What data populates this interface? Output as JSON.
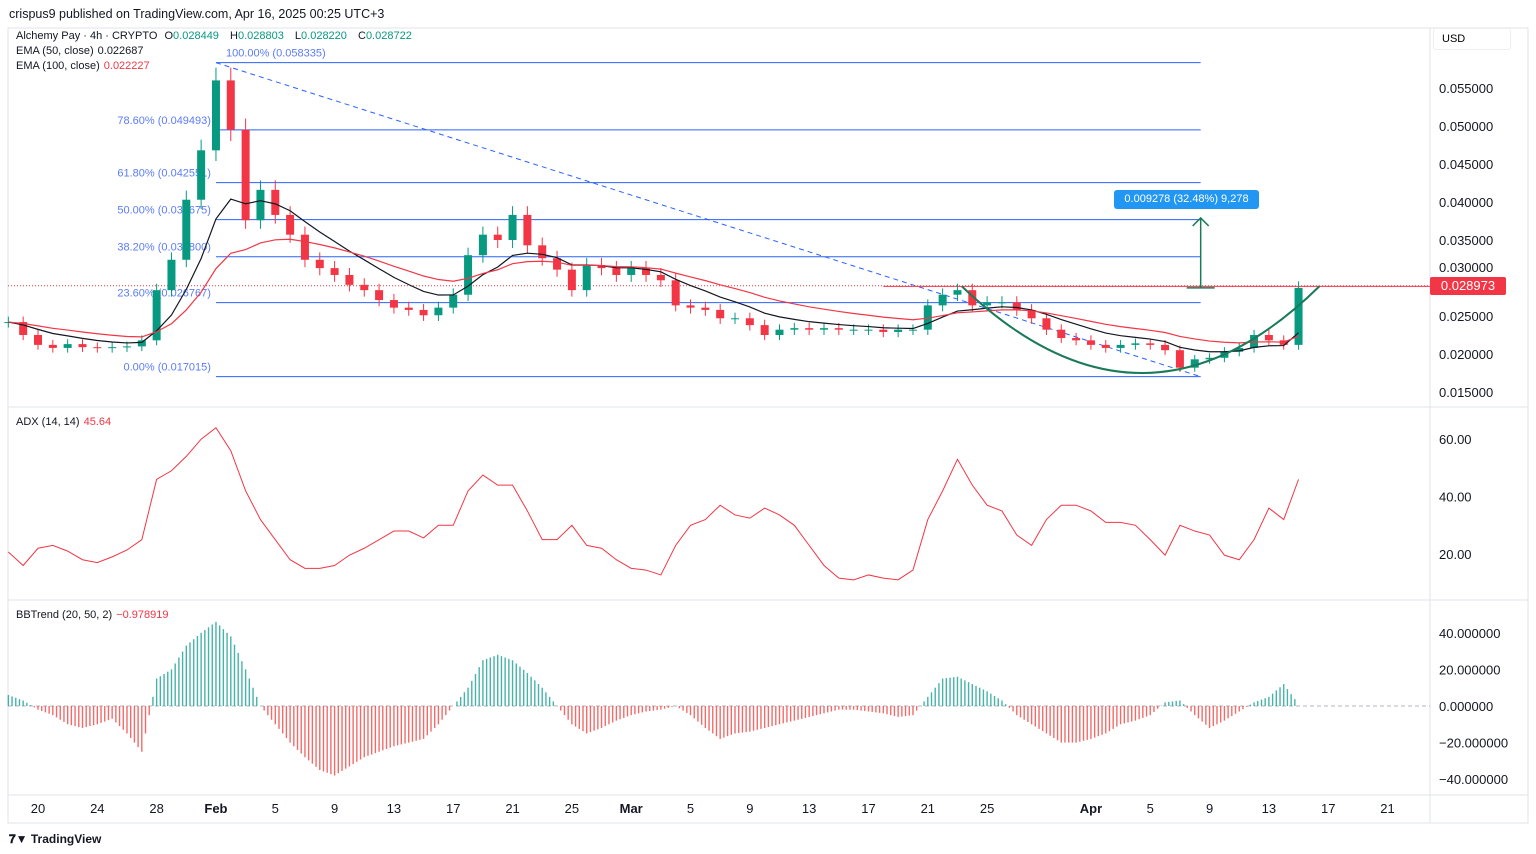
{
  "header": {
    "published": "crispus9 published on TradingView.com, Apr 16, 2025 00:25 UTC+3"
  },
  "legend": {
    "symbol": "Alchemy Pay · 4h · CRYPTO",
    "o_label": "O",
    "o": "0.028449",
    "h_label": "H",
    "h": "0.028803",
    "l_label": "L",
    "l": "0.028220",
    "c_label": "C",
    "c": "0.028722",
    "ema50_label": "EMA (50, close)",
    "ema50": "0.022687",
    "ema100_label": "EMA (100, close)",
    "ema100": "0.022227",
    "adx_label": "ADX (14, 14)",
    "adx": "45.64",
    "bbtrend_label": "BBTrend (20, 50, 2)",
    "bbtrend": "−0.978919"
  },
  "currency": "USD",
  "last_price": "0.028973",
  "measure_label": "0.009278 (32.48%) 9,278",
  "logo": "TradingView",
  "colors": {
    "up": "#089981",
    "down": "#f23645",
    "ema50": "#131722",
    "ema100": "#f23645",
    "fib": "#2962ff",
    "cup": "#1b7a5a"
  },
  "chart_data": {
    "type": "candlestick",
    "title": "Alchemy Pay · 4h · CRYPTO",
    "start_date": "2025-01-18",
    "price_axis": {
      "ticks": [
        "0.015000",
        "0.020000",
        "0.025000",
        "0.030000",
        "0.035000",
        "0.040000",
        "0.045000",
        "0.050000",
        "0.055000"
      ],
      "ylim": [
        0.0125,
        0.0605
      ]
    },
    "time_axis": {
      "labels": [
        {
          "d": 0,
          "t": "20"
        },
        {
          "d": 4,
          "t": "24"
        },
        {
          "d": 8,
          "t": "28"
        },
        {
          "d": 12,
          "t": "Feb",
          "bold": true
        },
        {
          "d": 16,
          "t": "5"
        },
        {
          "d": 20,
          "t": "9"
        },
        {
          "d": 24,
          "t": "13"
        },
        {
          "d": 28,
          "t": "17"
        },
        {
          "d": 32,
          "t": "21"
        },
        {
          "d": 36,
          "t": "25"
        },
        {
          "d": 40,
          "t": "Mar",
          "bold": true
        },
        {
          "d": 44,
          "t": "5"
        },
        {
          "d": 48,
          "t": "9"
        },
        {
          "d": 52,
          "t": "13"
        },
        {
          "d": 56,
          "t": "17"
        },
        {
          "d": 60,
          "t": "21"
        },
        {
          "d": 64,
          "t": "25"
        },
        {
          "d": 71,
          "t": "Apr",
          "bold": true
        },
        {
          "d": 75,
          "t": "5"
        },
        {
          "d": 79,
          "t": "9"
        },
        {
          "d": 83,
          "t": "13"
        },
        {
          "d": 87,
          "t": "17"
        },
        {
          "d": 91,
          "t": "21"
        }
      ]
    },
    "closes": [
      0.0242,
      0.0225,
      0.0212,
      0.0208,
      0.0213,
      0.0209,
      0.0208,
      0.0209,
      0.021,
      0.0218,
      0.0284,
      0.0324,
      0.0403,
      0.0468,
      0.056,
      0.0495,
      0.0376,
      0.0416,
      0.0383,
      0.0357,
      0.0324,
      0.0313,
      0.0304,
      0.0291,
      0.0284,
      0.0271,
      0.0261,
      0.0258,
      0.0251,
      0.0261,
      0.0278,
      0.033,
      0.0357,
      0.035,
      0.0383,
      0.0343,
      0.0326,
      0.0311,
      0.0284,
      0.0317,
      0.0313,
      0.0304,
      0.0313,
      0.0304,
      0.0297,
      0.0264,
      0.0261,
      0.0258,
      0.0247,
      0.0247,
      0.0238,
      0.0225,
      0.0232,
      0.0234,
      0.0232,
      0.0234,
      0.0232,
      0.0232,
      0.0232,
      0.0229,
      0.0232,
      0.0232,
      0.0264,
      0.0278,
      0.0284,
      0.0264,
      0.0268,
      0.0268,
      0.0258,
      0.0247,
      0.0232,
      0.0221,
      0.0218,
      0.0212,
      0.0208,
      0.0212,
      0.0214,
      0.0212,
      0.0205,
      0.0182,
      0.0193,
      0.0195,
      0.0203,
      0.0208,
      0.0225,
      0.0218,
      0.0212,
      0.0287
    ],
    "high_max": 0.058335,
    "fib_levels": [
      {
        "pct": "100.00%",
        "v": 0.058335
      },
      {
        "pct": "78.60%",
        "v": 0.049493
      },
      {
        "pct": "61.80%",
        "v": 0.042551
      },
      {
        "pct": "50.00%",
        "v": 0.037675
      },
      {
        "pct": "38.20%",
        "v": 0.0328
      },
      {
        "pct": "23.60%",
        "v": 0.026767
      },
      {
        "pct": "0.00%",
        "v": 0.017015
      }
    ],
    "resistance": 0.0289,
    "cup": {
      "start_d": 62.3,
      "bottom_d": 74.5,
      "end_d": 86.4,
      "rim": 0.0289,
      "bottom": 0.0175
    },
    "measure": {
      "d": 78.4,
      "from": 0.0287,
      "to": 0.0379
    },
    "adx": {
      "ticks": [
        "20.00",
        "40.00",
        "60.00"
      ],
      "values": [
        20.7,
        16,
        22,
        23,
        21,
        18,
        17,
        19,
        21.4,
        25,
        46,
        49,
        54,
        60,
        64,
        56,
        42,
        32,
        25,
        18,
        15,
        15,
        16,
        19.6,
        22,
        25,
        28,
        28,
        25.6,
        30,
        30,
        42,
        47.5,
        44,
        44,
        35,
        25,
        25,
        30,
        23,
        22,
        18,
        15,
        14.4,
        12.7,
        23,
        30,
        32,
        37,
        33.6,
        32.5,
        36,
        33.6,
        30,
        23,
        16,
        11.6,
        11,
        12.7,
        11.6,
        11,
        14.4,
        32,
        42,
        53,
        44,
        37,
        35,
        26.6,
        23,
        32,
        37,
        37,
        35,
        31,
        31,
        30,
        25,
        19.6,
        30,
        28,
        26.6,
        19.6,
        18,
        25,
        36,
        32,
        46
      ]
    },
    "bbtrend": {
      "ticks": [
        "40.000000",
        "20.000000",
        "0.000000",
        "−20.000000",
        "−40.000000"
      ],
      "values": [
        6,
        3,
        -2,
        -5,
        -10,
        -12,
        -10,
        -7,
        -15,
        -25,
        15,
        20,
        33,
        40,
        46,
        38,
        20,
        0,
        -10,
        -20,
        -28,
        -35,
        -38,
        -33,
        -28,
        -25,
        -22,
        -20,
        -18,
        -10,
        0,
        10,
        25,
        28,
        25,
        18,
        10,
        0,
        -10,
        -15,
        -12,
        -8,
        -5,
        -3,
        -2,
        0,
        -5,
        -12,
        -18,
        -15,
        -14,
        -12,
        -10,
        -8,
        -6,
        -4,
        -2,
        -2,
        -3,
        -4,
        -6,
        -5,
        5,
        15,
        16,
        12,
        8,
        3,
        -5,
        -10,
        -15,
        -20,
        -20,
        -18,
        -15,
        -10,
        -8,
        -5,
        2,
        3,
        -5,
        -12,
        -8,
        -3,
        2,
        5,
        12,
        1
      ]
    }
  }
}
